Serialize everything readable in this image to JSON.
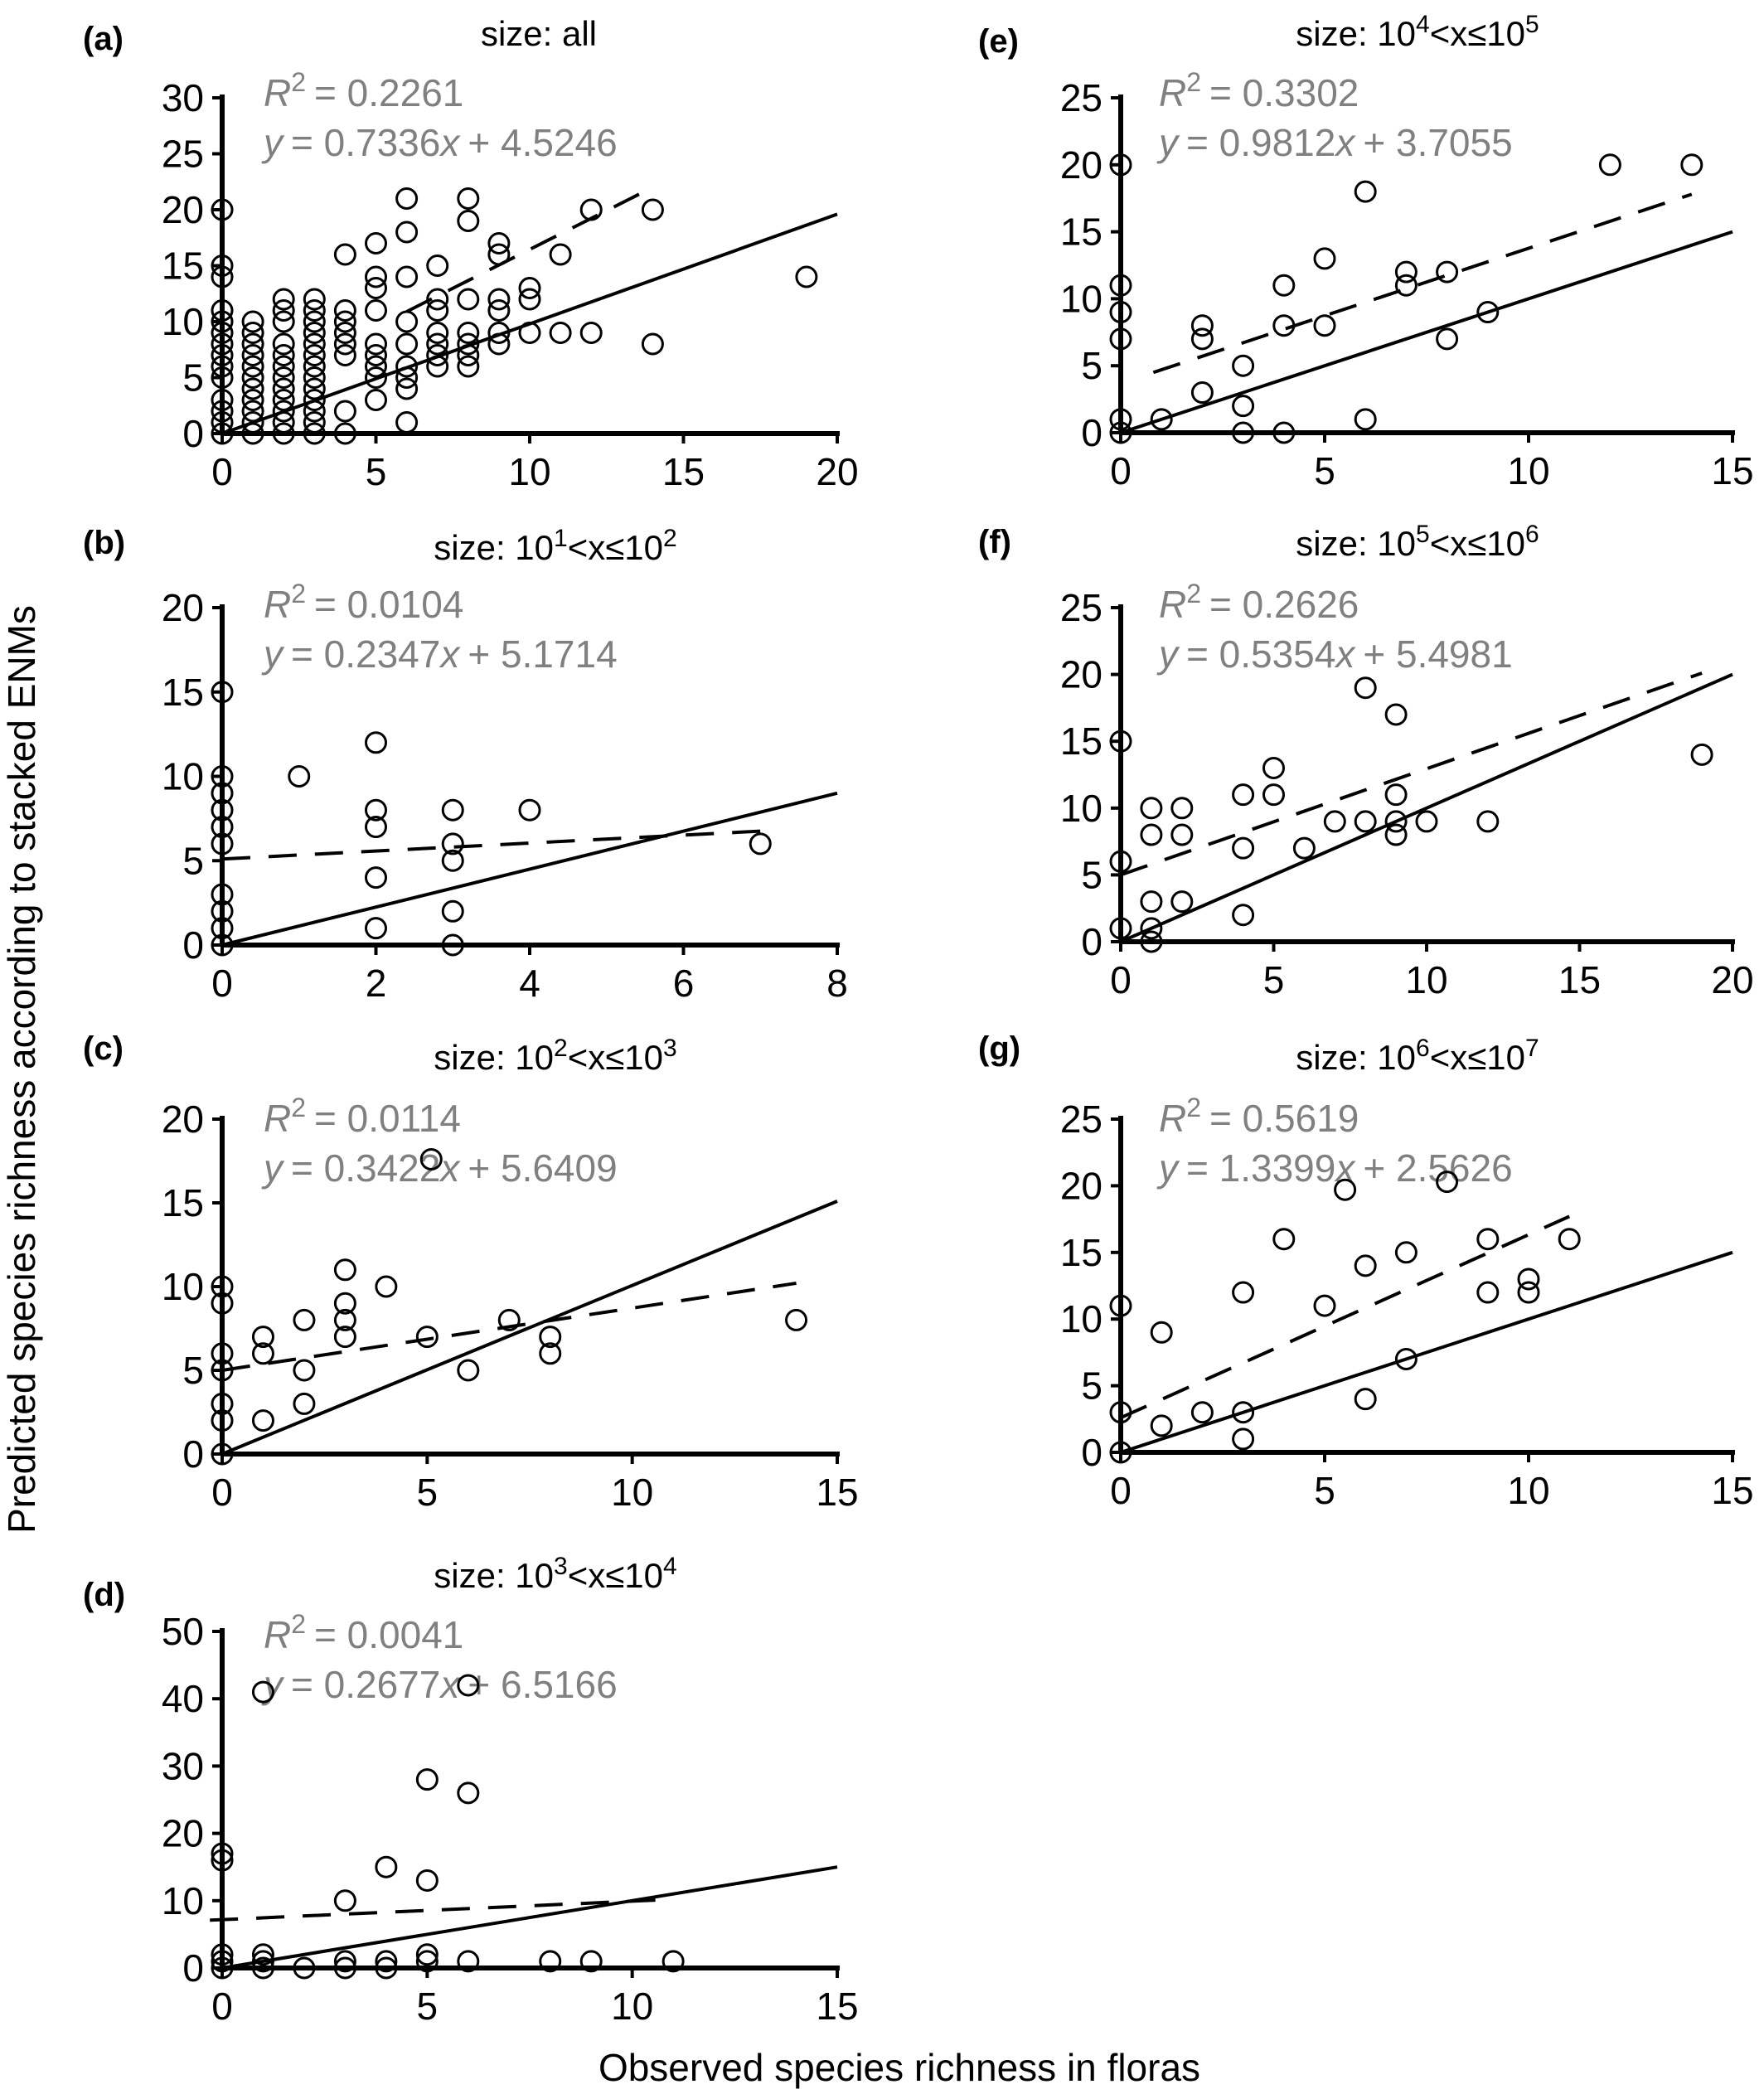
{
  "figure": {
    "xlabel": "Observed species richness in floras",
    "ylabel": "Predicted species richness according to stacked ENMs"
  },
  "chart_data": [
    {
      "type": "scatter",
      "label": "(a)",
      "title": "size: all",
      "r2_label": "R",
      "r2_value": "= 0.2261",
      "eq_y": "y",
      "eq_mid": "= 0.7336",
      "eq_x": "x",
      "eq_tail": "+ 4.5246",
      "xlim": [
        0,
        20
      ],
      "ylim": [
        0,
        30
      ],
      "xticks": [
        0,
        5,
        10,
        15,
        20
      ],
      "yticks": [
        0,
        5,
        10,
        15,
        20,
        25,
        30
      ],
      "points": [
        [
          0,
          0
        ],
        [
          0,
          1
        ],
        [
          0,
          2
        ],
        [
          0,
          3
        ],
        [
          0,
          5
        ],
        [
          0,
          6
        ],
        [
          0,
          7
        ],
        [
          0,
          8
        ],
        [
          0,
          9
        ],
        [
          0,
          10
        ],
        [
          0,
          11
        ],
        [
          0,
          14
        ],
        [
          0,
          15
        ],
        [
          0,
          20
        ],
        [
          1,
          0
        ],
        [
          1,
          1
        ],
        [
          1,
          2
        ],
        [
          1,
          3
        ],
        [
          1,
          4
        ],
        [
          1,
          5
        ],
        [
          1,
          6
        ],
        [
          1,
          7
        ],
        [
          1,
          8
        ],
        [
          1,
          9
        ],
        [
          1,
          10
        ],
        [
          2,
          0
        ],
        [
          2,
          1
        ],
        [
          2,
          2
        ],
        [
          2,
          3
        ],
        [
          2,
          4
        ],
        [
          2,
          5
        ],
        [
          2,
          6
        ],
        [
          2,
          7
        ],
        [
          2,
          8
        ],
        [
          2,
          10
        ],
        [
          2,
          11
        ],
        [
          2,
          12
        ],
        [
          3,
          0
        ],
        [
          3,
          1
        ],
        [
          3,
          2
        ],
        [
          3,
          3
        ],
        [
          3,
          4
        ],
        [
          3,
          5
        ],
        [
          3,
          6
        ],
        [
          3,
          7
        ],
        [
          3,
          8
        ],
        [
          3,
          9
        ],
        [
          3,
          10
        ],
        [
          3,
          11
        ],
        [
          3,
          12
        ],
        [
          4,
          0
        ],
        [
          4,
          2
        ],
        [
          4,
          7
        ],
        [
          4,
          8
        ],
        [
          4,
          9
        ],
        [
          4,
          10
        ],
        [
          4,
          11
        ],
        [
          4,
          16
        ],
        [
          5,
          3
        ],
        [
          5,
          5
        ],
        [
          5,
          6
        ],
        [
          5,
          7
        ],
        [
          5,
          8
        ],
        [
          5,
          11
        ],
        [
          5,
          13
        ],
        [
          5,
          14
        ],
        [
          5,
          17
        ],
        [
          6,
          1
        ],
        [
          6,
          4
        ],
        [
          6,
          5
        ],
        [
          6,
          6
        ],
        [
          6,
          8
        ],
        [
          6,
          10
        ],
        [
          6,
          14
        ],
        [
          6,
          18
        ],
        [
          6,
          21
        ],
        [
          7,
          6
        ],
        [
          7,
          7
        ],
        [
          7,
          8
        ],
        [
          7,
          9
        ],
        [
          7,
          11
        ],
        [
          7,
          12
        ],
        [
          7,
          15
        ],
        [
          8,
          6
        ],
        [
          8,
          7
        ],
        [
          8,
          8
        ],
        [
          8,
          9
        ],
        [
          8,
          12
        ],
        [
          8,
          19
        ],
        [
          8,
          21
        ],
        [
          9,
          8
        ],
        [
          9,
          9
        ],
        [
          9,
          11
        ],
        [
          9,
          12
        ],
        [
          9,
          16
        ],
        [
          9,
          17
        ],
        [
          10,
          9
        ],
        [
          10,
          12
        ],
        [
          10,
          13
        ],
        [
          11,
          9
        ],
        [
          11,
          16
        ],
        [
          12,
          9
        ],
        [
          12,
          20
        ],
        [
          14,
          8
        ],
        [
          14,
          20
        ],
        [
          19,
          14
        ]
      ],
      "solid_line": [
        [
          0,
          0
        ],
        [
          20,
          19.6
        ]
      ],
      "dashed_line": [
        [
          6,
          10.9
        ],
        [
          14,
          22.0
        ]
      ]
    },
    {
      "type": "scatter",
      "label": "(b)",
      "title_pre": "size: 10",
      "title_sup1": "1",
      "title_mid": "<x≤10",
      "title_sup2": "2",
      "r2_label": "R",
      "r2_value": "= 0.0104",
      "eq_y": "y",
      "eq_mid": "= 0.2347",
      "eq_x": "x",
      "eq_tail": "+ 5.1714",
      "xlim": [
        0,
        8
      ],
      "ylim": [
        0,
        20
      ],
      "xticks": [
        0,
        2,
        4,
        6,
        8
      ],
      "yticks": [
        0,
        5,
        10,
        15,
        20
      ],
      "points": [
        [
          0,
          0
        ],
        [
          0,
          1
        ],
        [
          0,
          2
        ],
        [
          0,
          3
        ],
        [
          0,
          6
        ],
        [
          0,
          7
        ],
        [
          0,
          8
        ],
        [
          0,
          9
        ],
        [
          0,
          10
        ],
        [
          0,
          15
        ],
        [
          1,
          10
        ],
        [
          2,
          1
        ],
        [
          2,
          4
        ],
        [
          2,
          7
        ],
        [
          2,
          8
        ],
        [
          2,
          12
        ],
        [
          3,
          0
        ],
        [
          3,
          2
        ],
        [
          3,
          5
        ],
        [
          3,
          6
        ],
        [
          3,
          8
        ],
        [
          4,
          8
        ],
        [
          7,
          6
        ]
      ],
      "solid_line": [
        [
          0,
          0
        ],
        [
          8,
          9.0
        ]
      ],
      "dashed_line": [
        [
          0,
          5.1
        ],
        [
          7.2,
          6.8
        ]
      ]
    },
    {
      "type": "scatter",
      "label": "(c)",
      "title_pre": "size: 10",
      "title_sup1": "2",
      "title_mid": "<x≤10",
      "title_sup2": "3",
      "r2_label": "R",
      "r2_value": "= 0.0114",
      "eq_y": "y",
      "eq_mid": "= 0.3422",
      "eq_x": "x",
      "eq_tail": "+ 5.6409",
      "xlim": [
        0,
        15
      ],
      "ylim": [
        0,
        20
      ],
      "xticks": [
        0,
        5,
        10,
        15
      ],
      "yticks": [
        0,
        5,
        10,
        15,
        20
      ],
      "points": [
        [
          0,
          0
        ],
        [
          0,
          2
        ],
        [
          0,
          3
        ],
        [
          0,
          5
        ],
        [
          0,
          6
        ],
        [
          0,
          9
        ],
        [
          0,
          10
        ],
        [
          1,
          2
        ],
        [
          1,
          6
        ],
        [
          1,
          7
        ],
        [
          2,
          3
        ],
        [
          2,
          5
        ],
        [
          2,
          8
        ],
        [
          3,
          7
        ],
        [
          3,
          8
        ],
        [
          3,
          9
        ],
        [
          3,
          11
        ],
        [
          4,
          10
        ],
        [
          5,
          7
        ],
        [
          5.1,
          17.6
        ],
        [
          6,
          5
        ],
        [
          7,
          8
        ],
        [
          8,
          6
        ],
        [
          8,
          7
        ],
        [
          14,
          8
        ]
      ],
      "solid_line": [
        [
          0,
          0
        ],
        [
          15,
          15.1
        ]
      ],
      "dashed_line": [
        [
          0,
          5.0
        ],
        [
          14,
          10.2
        ]
      ]
    },
    {
      "type": "scatter",
      "label": "(d)",
      "title_pre": "size: 10",
      "title_sup1": "3",
      "title_mid": "<x≤10",
      "title_sup2": "4",
      "r2_label": "R",
      "r2_value": "= 0.0041",
      "eq_y": "y",
      "eq_mid": "= 0.2677",
      "eq_x": "x",
      "eq_tail": "+ 6.5166",
      "xlim": [
        0,
        15
      ],
      "ylim": [
        0,
        50
      ],
      "xticks": [
        0,
        5,
        10,
        15
      ],
      "yticks": [
        0,
        10,
        20,
        30,
        40,
        50
      ],
      "points": [
        [
          0,
          0
        ],
        [
          0,
          1
        ],
        [
          0,
          2
        ],
        [
          0,
          16
        ],
        [
          0,
          17
        ],
        [
          1,
          0
        ],
        [
          1,
          1
        ],
        [
          1,
          2
        ],
        [
          1,
          41
        ],
        [
          2,
          0
        ],
        [
          3,
          0
        ],
        [
          3,
          1
        ],
        [
          3,
          10
        ],
        [
          4,
          0
        ],
        [
          4,
          1
        ],
        [
          4,
          15
        ],
        [
          5,
          1
        ],
        [
          5,
          2
        ],
        [
          5,
          13
        ],
        [
          5,
          28
        ],
        [
          6,
          1
        ],
        [
          6,
          26
        ],
        [
          6,
          42
        ],
        [
          8,
          1
        ],
        [
          9,
          1
        ],
        [
          11,
          1
        ]
      ],
      "solid_line": [
        [
          0,
          0
        ],
        [
          15,
          15.0
        ]
      ],
      "dashed_line": [
        [
          -0.3,
          7.1
        ],
        [
          11,
          10.2
        ]
      ]
    },
    {
      "type": "scatter",
      "label": "(e)",
      "title_pre": "size: 10",
      "title_sup1": "4",
      "title_mid": "<x≤10",
      "title_sup2": "5",
      "r2_label": "R",
      "r2_value": "= 0.3302",
      "eq_y": "y",
      "eq_mid": "= 0.9812",
      "eq_x": "x",
      "eq_tail": "+ 3.7055",
      "xlim": [
        0,
        15
      ],
      "ylim": [
        0,
        25
      ],
      "xticks": [
        0,
        5,
        10,
        15
      ],
      "yticks": [
        0,
        5,
        10,
        15,
        20,
        25
      ],
      "points": [
        [
          0,
          0
        ],
        [
          0,
          1
        ],
        [
          0,
          7
        ],
        [
          0,
          9
        ],
        [
          0,
          11
        ],
        [
          0,
          20
        ],
        [
          1,
          1
        ],
        [
          2,
          3
        ],
        [
          2,
          7
        ],
        [
          2,
          8
        ],
        [
          3,
          0
        ],
        [
          3,
          2
        ],
        [
          3,
          5
        ],
        [
          4,
          0
        ],
        [
          4,
          8
        ],
        [
          4,
          11
        ],
        [
          5,
          8
        ],
        [
          5,
          13
        ],
        [
          6,
          1
        ],
        [
          6,
          18
        ],
        [
          7,
          11
        ],
        [
          7,
          12
        ],
        [
          8,
          7
        ],
        [
          8,
          12
        ],
        [
          9,
          9
        ],
        [
          12,
          20
        ],
        [
          14,
          20
        ]
      ],
      "solid_line": [
        [
          0,
          0
        ],
        [
          15,
          15.0
        ]
      ],
      "dashed_line": [
        [
          0.8,
          4.5
        ],
        [
          14,
          17.8
        ]
      ]
    },
    {
      "type": "scatter",
      "label": "(f)",
      "title_pre": "size: 10",
      "title_sup1": "5",
      "title_mid": "<x≤10",
      "title_sup2": "6",
      "r2_label": "R",
      "r2_value": "= 0.2626",
      "eq_y": "y",
      "eq_mid": "= 0.5354",
      "eq_x": "x",
      "eq_tail": "+ 5.4981",
      "xlim": [
        0,
        20
      ],
      "ylim": [
        0,
        25
      ],
      "xticks": [
        0,
        5,
        10,
        15,
        20
      ],
      "yticks": [
        0,
        5,
        10,
        15,
        20,
        25
      ],
      "points": [
        [
          0,
          1
        ],
        [
          0,
          6
        ],
        [
          0,
          15
        ],
        [
          1,
          0
        ],
        [
          1,
          1
        ],
        [
          1,
          3
        ],
        [
          1,
          8
        ],
        [
          1,
          10
        ],
        [
          2,
          3
        ],
        [
          2,
          8
        ],
        [
          2,
          10
        ],
        [
          4,
          2
        ],
        [
          4,
          7
        ],
        [
          4,
          11
        ],
        [
          5,
          11
        ],
        [
          5,
          13
        ],
        [
          6,
          7
        ],
        [
          7,
          9
        ],
        [
          8,
          9
        ],
        [
          8,
          19
        ],
        [
          9,
          8
        ],
        [
          9,
          9
        ],
        [
          9,
          11
        ],
        [
          9,
          17
        ],
        [
          10,
          9
        ],
        [
          12,
          9
        ],
        [
          19,
          14
        ]
      ],
      "solid_line": [
        [
          0,
          0
        ],
        [
          20,
          20.0
        ]
      ],
      "dashed_line": [
        [
          0,
          5.0
        ],
        [
          19,
          20.1
        ]
      ]
    },
    {
      "type": "scatter",
      "label": "(g)",
      "title_pre": "size: 10",
      "title_sup1": "6",
      "title_mid": "<x≤10",
      "title_sup2": "7",
      "r2_label": "R",
      "r2_value": "= 0.5619",
      "eq_y": "y",
      "eq_mid": "= 1.3399",
      "eq_x": "x",
      "eq_tail": "+ 2.5626",
      "xlim": [
        0,
        15
      ],
      "ylim": [
        0,
        25
      ],
      "xticks": [
        0,
        5,
        10,
        15
      ],
      "yticks": [
        0,
        5,
        10,
        15,
        20,
        25
      ],
      "points": [
        [
          0,
          0
        ],
        [
          0,
          3
        ],
        [
          0,
          11
        ],
        [
          1,
          2
        ],
        [
          1,
          9
        ],
        [
          2,
          3
        ],
        [
          3,
          1
        ],
        [
          3,
          3
        ],
        [
          3,
          12
        ],
        [
          4,
          16
        ],
        [
          5,
          11
        ],
        [
          5.5,
          19.7
        ],
        [
          6,
          4
        ],
        [
          6,
          14
        ],
        [
          7,
          7
        ],
        [
          7,
          15
        ],
        [
          8,
          20.3
        ],
        [
          9,
          12
        ],
        [
          9,
          16
        ],
        [
          10,
          12
        ],
        [
          10,
          13
        ],
        [
          11,
          16
        ]
      ],
      "solid_line": [
        [
          0,
          0
        ],
        [
          15,
          15.0
        ]
      ],
      "dashed_line": [
        [
          0,
          2.6
        ],
        [
          11,
          17.7
        ]
      ]
    }
  ]
}
